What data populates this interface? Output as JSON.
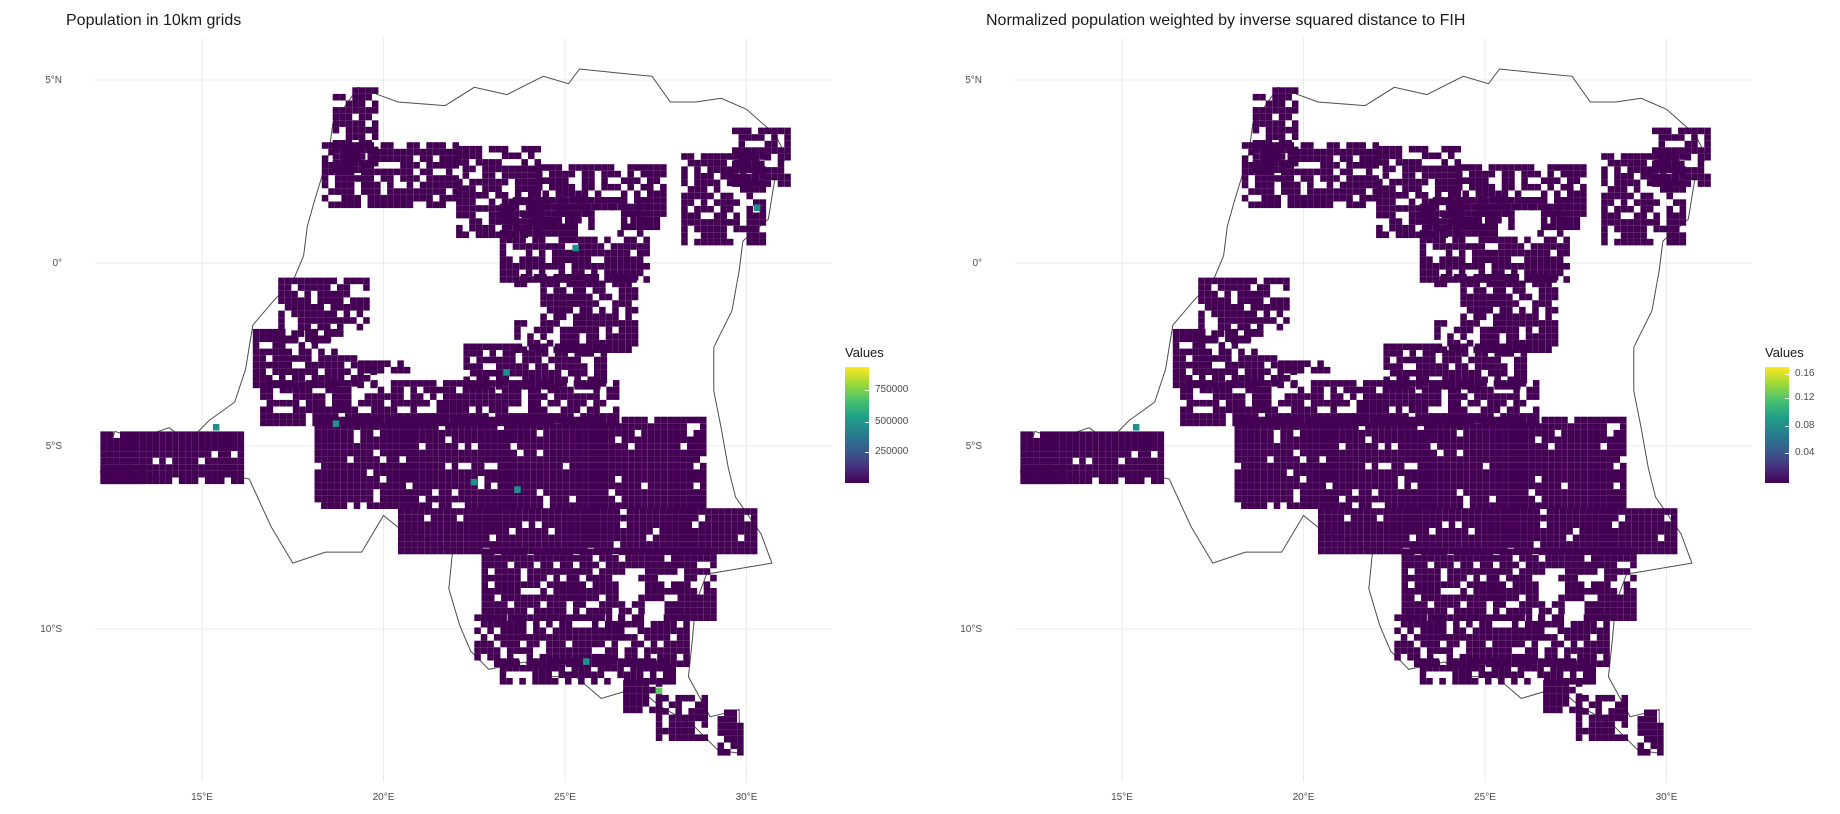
{
  "panels": [
    {
      "title": "Population in 10km grids",
      "legend": {
        "title": "Values",
        "ticks": [
          {
            "label": "750000",
            "frac": 0.8
          },
          {
            "label": "500000",
            "frac": 0.53
          },
          {
            "label": "250000",
            "frac": 0.27
          }
        ]
      }
    },
    {
      "title": "Normalized population weighted by inverse squared distance to FIH",
      "legend": {
        "title": "Values",
        "ticks": [
          {
            "label": "0.16",
            "frac": 0.94
          },
          {
            "label": "0.12",
            "frac": 0.73
          },
          {
            "label": "0.08",
            "frac": 0.49
          },
          {
            "label": "0.04",
            "frac": 0.26
          }
        ]
      }
    }
  ],
  "axes": {
    "lat_ticks": [
      {
        "label": "5°N",
        "value": 5
      },
      {
        "label": "0°",
        "value": 0
      },
      {
        "label": "5°S",
        "value": -5
      },
      {
        "label": "10°S",
        "value": -10
      }
    ],
    "lon_ticks": [
      {
        "label": "15°E",
        "value": 15
      },
      {
        "label": "20°E",
        "value": 20
      },
      {
        "label": "25°E",
        "value": 25
      },
      {
        "label": "30°E",
        "value": 30
      }
    ]
  },
  "colors": {
    "fill_dark": "#440154",
    "outline": "#4d4d4d",
    "grid": "#ebebeb",
    "hotspot_teal": "#21908c",
    "hotspot_green": "#5ec962",
    "hotspot_yellow": "#fde725"
  },
  "grid_lines": true
}
